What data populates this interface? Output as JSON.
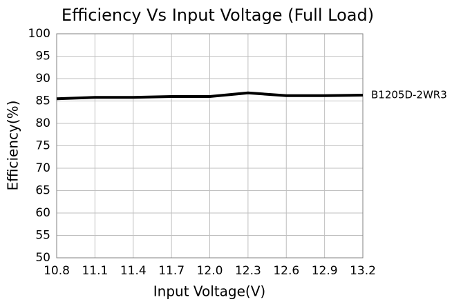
{
  "chart_data": {
    "type": "line",
    "title": "Efficiency Vs Input Voltage (Full Load)",
    "x_label": "Input Voltage(V)",
    "y_label": "Efficiency(%)",
    "x": [
      10.8,
      11.1,
      11.4,
      11.7,
      12.0,
      12.3,
      12.6,
      12.9,
      13.2
    ],
    "series": [
      {
        "name": "B1205D-2WR3",
        "color": "#000000",
        "values": [
          85.5,
          85.8,
          85.8,
          86.0,
          86.0,
          86.8,
          86.2,
          86.2,
          86.3
        ]
      }
    ],
    "xlim": [
      10.8,
      13.2
    ],
    "xticks": [
      10.8,
      11.1,
      11.4,
      11.7,
      {
        "value": 12.0,
        "label": "12.0"
      },
      12.3,
      12.6,
      12.9,
      13.2
    ],
    "ylim": [
      50,
      100
    ],
    "yticks": [
      50,
      55,
      60,
      65,
      70,
      75,
      80,
      85,
      90,
      95,
      100
    ],
    "grid": true
  }
}
